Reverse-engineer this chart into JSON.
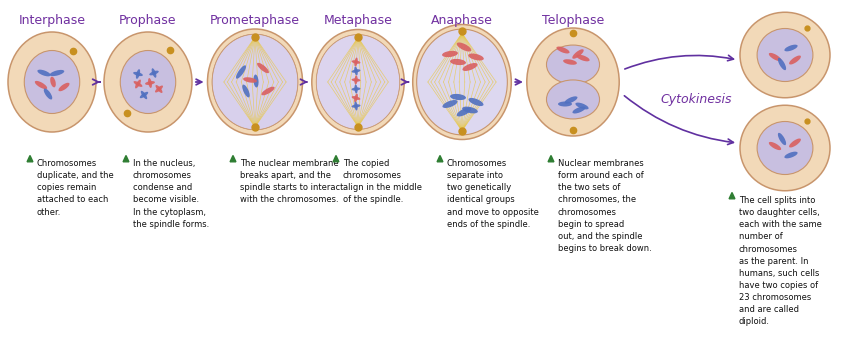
{
  "bg_color": "#ffffff",
  "stage_labels": [
    "Interphase",
    "Prophase",
    "Prometaphase",
    "Metaphase",
    "Anaphase",
    "Telophase"
  ],
  "stage_label_color": "#7030a0",
  "cytokinesis_label": "Cytokinesis",
  "cytokinesis_color": "#7030a0",
  "descriptions": [
    "Chromosomes\nduplicate, and the\ncopies remain\nattached to each\nother.",
    "In the nucleus,\nchromosomes\ncondense and\nbecome visible.\nIn the cytoplasm,\nthe spindle forms.",
    "The nuclear membrane\nbreaks apart, and the\nspindle starts to interact\nwith the chromosomes.",
    "The copied\nchromosomes\nalign in the middle\nof the spindle.",
    "Chromosomes\nseparate into\ntwo genetically\nidentical groups\nand move to opposite\nends of the spindle.",
    "Nuclear membranes\nform around each of\nthe two sets of\nchromosomes, the\nchromosomes\nbegin to spread\nout, and the spindle\nbegins to break down."
  ],
  "cytokinesis_desc": "The cell splits into\ntwo daughter cells,\neach with the same\nnumber of\nchromosomes\nas the parent. In\nhumans, such cells\nhave two copies of\n23 chromosomes\nand are called\ndiploid.",
  "cell_outer_color": "#f2d9b8",
  "cell_inner_color": "#c8bfe0",
  "cell_border_color": "#c8956c",
  "arrow_color": "#6030a0",
  "desc_triangle_color": "#2e7d32",
  "desc_text_color": "#111111",
  "desc_text_size": 6.0,
  "label_text_size": 9.0,
  "pink": "#d96060",
  "blue": "#5070c0",
  "gold": "#c89020",
  "spindle_color": "#e8c840"
}
